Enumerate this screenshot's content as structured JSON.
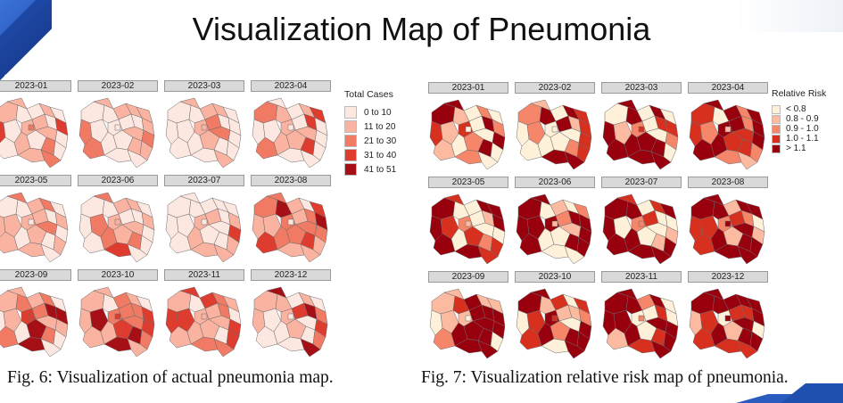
{
  "slide": {
    "title": "Visualization Map of Pneumonia"
  },
  "fig_actual": {
    "caption": "Fig. 6: Visualization of actual pneumonia map.",
    "legend_title": "Total Cases",
    "legend": [
      {
        "label": "0 to 10",
        "color": "#fde7e1"
      },
      {
        "label": "11 to 20",
        "color": "#f9b3a0"
      },
      {
        "label": "21 to 30",
        "color": "#f07a63"
      },
      {
        "label": "31 to 40",
        "color": "#dd3c2e"
      },
      {
        "label": "41 to 51",
        "color": "#a50f15"
      }
    ],
    "panels": [
      "2023-01",
      "2023-02",
      "2023-03",
      "2023-04",
      "2023-05",
      "2023-06",
      "2023-07",
      "2023-08",
      "2023-09",
      "2023-10",
      "2023-11",
      "2023-12"
    ]
  },
  "fig_risk": {
    "caption": "Fig. 7: Visualization relative risk map of pneumonia.",
    "legend_title": "Relative Risk",
    "legend": [
      {
        "label": "< 0.8",
        "color": "#fef0d9"
      },
      {
        "label": "0.8 - 0.9",
        "color": "#fcbba1"
      },
      {
        "label": "0.9 - 1.0",
        "color": "#f6866a"
      },
      {
        "label": "1.0 - 1.1",
        "color": "#d7301f"
      },
      {
        "label": "> 1.1",
        "color": "#99000d"
      }
    ],
    "panels": [
      "2023-01",
      "2023-02",
      "2023-03",
      "2023-04",
      "2023-05",
      "2023-06",
      "2023-07",
      "2023-08",
      "2023-09",
      "2023-10",
      "2023-11",
      "2023-12"
    ]
  }
}
